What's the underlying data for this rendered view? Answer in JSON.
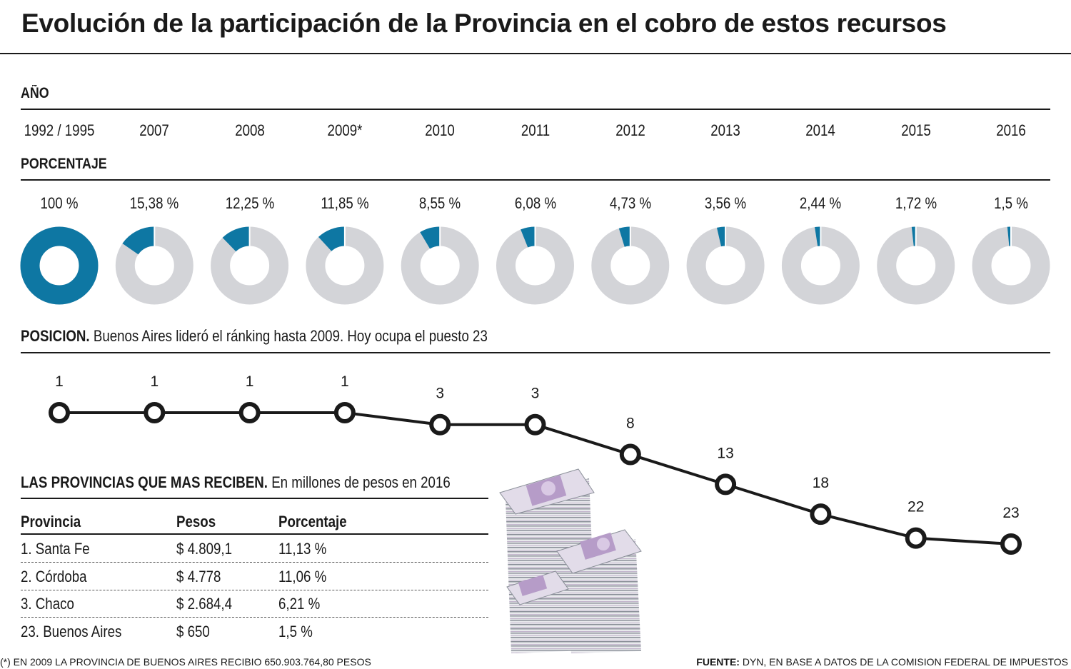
{
  "title": "Evolución de la participación de la Provincia en el cobro de estos recursos",
  "labels": {
    "anio": "AÑO",
    "porcentaje": "PORCENTAJE",
    "posicion_bold": "POSICION.",
    "posicion_text": "Buenos Aires lideró el ránking hasta 2009. Hoy ocupa el puesto 23"
  },
  "colors": {
    "accent": "#0e77a3",
    "ring_bg": "#d3d4d8",
    "line": "#1a1a1a"
  },
  "chart_data": {
    "type": "line",
    "title": "Evolución de la participación de la Provincia en el cobro de estos recursos",
    "categories": [
      "1992 / 1995",
      "2007",
      "2008",
      "2009*",
      "2010",
      "2011",
      "2012",
      "2013",
      "2014",
      "2015",
      "2016"
    ],
    "percent_labels": [
      "100 %",
      "15,38 %",
      "12,25 %",
      "11,85 %",
      "8,55 %",
      "6,08 %",
      "4,73 %",
      "3,56 %",
      "2,44 %",
      "1,72 %",
      "1,5 %"
    ],
    "percent_values": [
      100,
      15.38,
      12.25,
      11.85,
      8.55,
      6.08,
      4.73,
      3.56,
      2.44,
      1.72,
      1.5
    ],
    "position_values": [
      1,
      1,
      1,
      1,
      3,
      3,
      8,
      13,
      18,
      22,
      23
    ],
    "ylim": [
      1,
      23
    ],
    "y_inverted": true
  },
  "table": {
    "title_bold": "LAS PROVINCIAS QUE MAS RECIBEN.",
    "title_text": "En millones de pesos en 2016",
    "headers": [
      "Provincia",
      "Pesos",
      "Porcentaje"
    ],
    "rows": [
      [
        "1. Santa Fe",
        "$ 4.809,1",
        "11,13 %"
      ],
      [
        "2. Córdoba",
        "$ 4.778",
        "11,06 %"
      ],
      [
        "3. Chaco",
        "$ 2.684,4",
        "6,21 %"
      ],
      [
        "23. Buenos Aires",
        "$ 650",
        "1,5 %"
      ]
    ]
  },
  "illustration": "money-stacks-illustration",
  "footer": {
    "note": "(*) EN 2009 LA PROVINCIA DE BUENOS AIRES RECIBIO  650.903.764,80 PESOS",
    "source_bold": "FUENTE:",
    "source_text": "DYN, EN BASE A DATOS DE LA COMISION FEDERAL DE IMPUESTOS"
  }
}
